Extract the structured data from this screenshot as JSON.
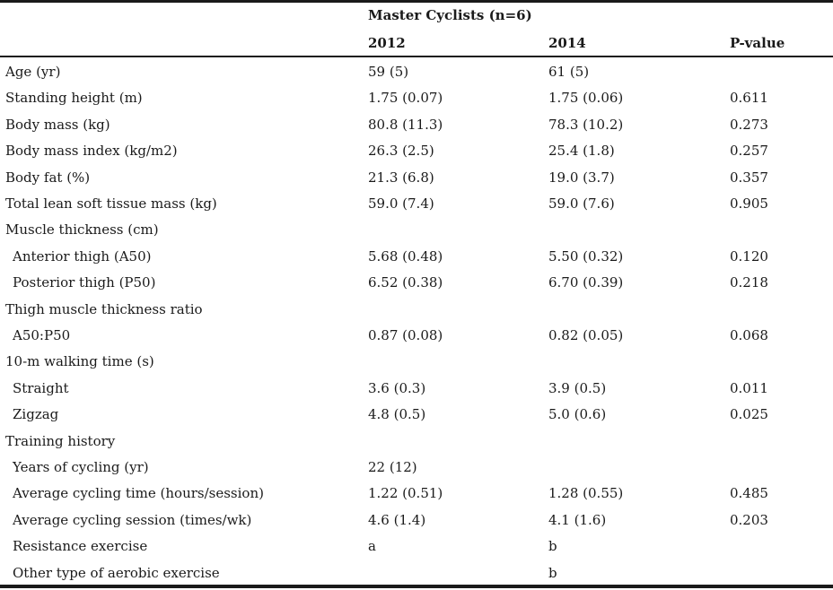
{
  "header": {
    "group_label": "Master Cyclists (n=6)",
    "col_2012": "2012",
    "col_2014": "2014",
    "col_p": "P-value"
  },
  "rows": [
    {
      "label": "Age (yr)",
      "indent": false,
      "v2012": "59 (5)",
      "v2014": "61 (5)",
      "p": ""
    },
    {
      "label": "Standing height (m)",
      "indent": false,
      "v2012": "1.75 (0.07)",
      "v2014": "1.75 (0.06)",
      "p": "0.611"
    },
    {
      "label": "Body mass (kg)",
      "indent": false,
      "v2012": "80.8 (11.3)",
      "v2014": "78.3 (10.2)",
      "p": "0.273"
    },
    {
      "label": "Body mass index (kg/m2)",
      "indent": false,
      "v2012": "26.3 (2.5)",
      "v2014": "25.4 (1.8)",
      "p": "0.257"
    },
    {
      "label": "Body fat (%)",
      "indent": false,
      "v2012": "21.3 (6.8)",
      "v2014": "19.0 (3.7)",
      "p": "0.357"
    },
    {
      "label": "Total lean soft tissue mass (kg)",
      "indent": false,
      "v2012": "59.0 (7.4)",
      "v2014": "59.0 (7.6)",
      "p": "0.905"
    },
    {
      "label": "Muscle thickness (cm)",
      "indent": false,
      "v2012": "",
      "v2014": "",
      "p": ""
    },
    {
      "label": "Anterior thigh (A50)",
      "indent": true,
      "v2012": "5.68 (0.48)",
      "v2014": "5.50 (0.32)",
      "p": "0.120"
    },
    {
      "label": "Posterior thigh (P50)",
      "indent": true,
      "v2012": "6.52 (0.38)",
      "v2014": "6.70 (0.39)",
      "p": "0.218"
    },
    {
      "label": "Thigh muscle thickness ratio",
      "indent": false,
      "v2012": "",
      "v2014": "",
      "p": ""
    },
    {
      "label": "A50:P50",
      "indent": true,
      "v2012": "0.87 (0.08)",
      "v2014": "0.82 (0.05)",
      "p": "0.068"
    },
    {
      "label": "10-m walking time (s)",
      "indent": false,
      "v2012": "",
      "v2014": "",
      "p": ""
    },
    {
      "label": "Straight",
      "indent": true,
      "v2012": "3.6 (0.3)",
      "v2014": "3.9 (0.5)",
      "p": "0.011"
    },
    {
      "label": "Zigzag",
      "indent": true,
      "v2012": "4.8 (0.5)",
      "v2014": "5.0 (0.6)",
      "p": "0.025"
    },
    {
      "label": "Training history",
      "indent": false,
      "v2012": "",
      "v2014": "",
      "p": ""
    },
    {
      "label": "Years of cycling (yr)",
      "indent": true,
      "v2012": "22 (12)",
      "v2014": "",
      "p": ""
    },
    {
      "label": "Average cycling time (hours/session)",
      "indent": true,
      "v2012": "1.22 (0.51)",
      "v2014": "1.28 (0.55)",
      "p": "0.485"
    },
    {
      "label": "Average cycling session (times/wk)",
      "indent": true,
      "v2012": "4.6 (1.4)",
      "v2014": "4.1 (1.6)",
      "p": "0.203"
    },
    {
      "label": "Resistance exercise",
      "indent": true,
      "v2012": "a",
      "v2014": "b",
      "p": ""
    },
    {
      "label": "Other type of aerobic exercise",
      "indent": true,
      "v2012": "",
      "v2014": "b",
      "p": ""
    }
  ]
}
